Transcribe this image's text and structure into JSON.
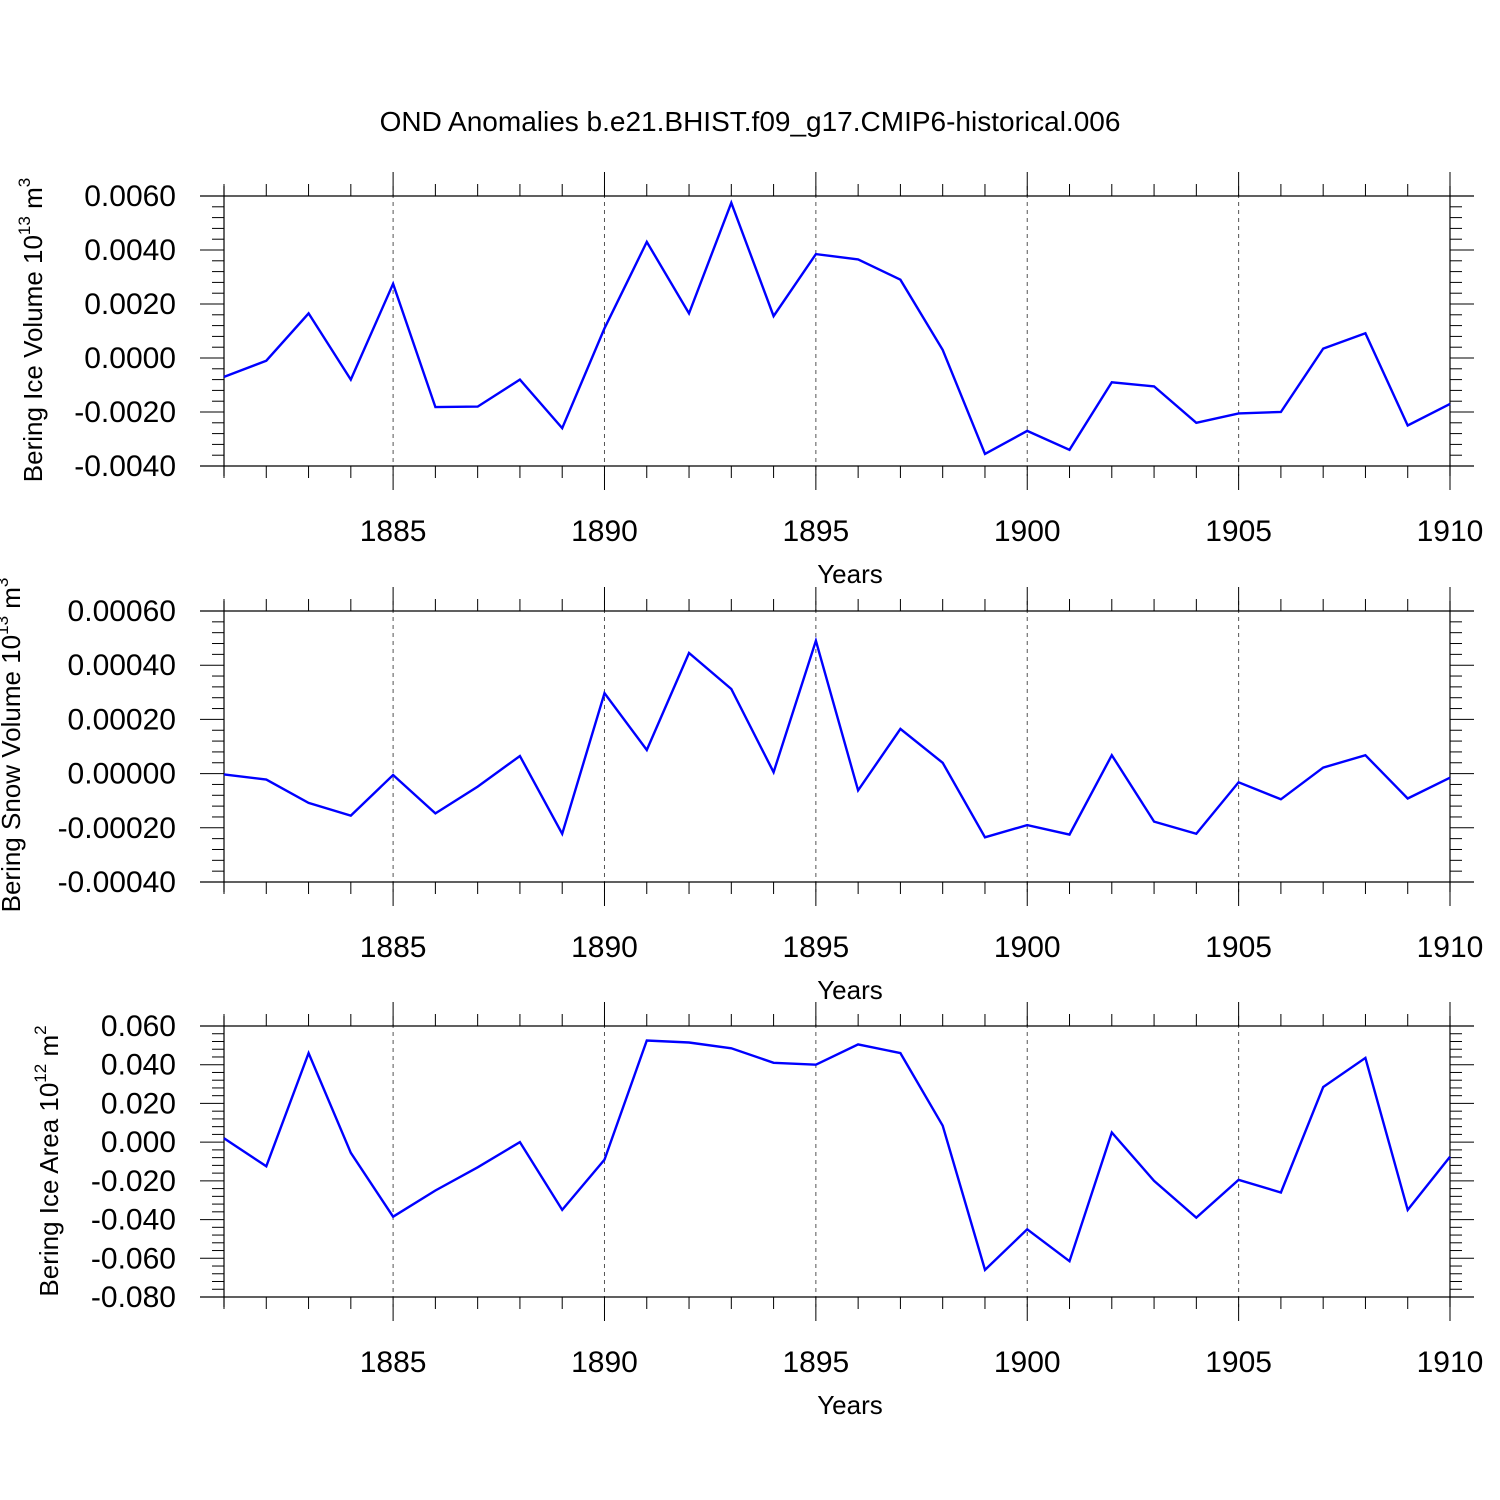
{
  "figure_title": "OND Anomalies b.e21.BHIST.f09_g17.CMIP6-historical.006",
  "chart_data": [
    {
      "type": "line",
      "title": "OND Anomalies b.e21.BHIST.f09_g17.CMIP6-historical.006",
      "xlabel": "Years",
      "ylabel": {
        "text": "Bering Ice Volume 10",
        "exponent": "13",
        "unit": " m",
        "unit_exponent": "3"
      },
      "xlim": [
        1881,
        1910
      ],
      "ylim": [
        -0.004,
        0.006
      ],
      "x_tick_values": [
        1885,
        1890,
        1895,
        1900,
        1905,
        1910
      ],
      "x_tick_labels": [
        "1885",
        "1890",
        "1895",
        "1900",
        "1905",
        "1910"
      ],
      "y_tick_values": [
        -0.004,
        -0.002,
        0.0,
        0.002,
        0.004,
        0.006
      ],
      "y_tick_labels": [
        "-0.0040",
        "-0.0020",
        "0.0000",
        "0.0020",
        "0.0040",
        "0.0060"
      ],
      "grid": "vertical dashed at major x ticks",
      "series": [
        {
          "name": "Bering Ice Volume",
          "color": "#0000ff",
          "x": [
            1881,
            1882,
            1883,
            1884,
            1885,
            1886,
            1887,
            1888,
            1889,
            1890,
            1891,
            1892,
            1893,
            1894,
            1895,
            1896,
            1897,
            1898,
            1899,
            1900,
            1901,
            1902,
            1903,
            1904,
            1905,
            1906,
            1907,
            1908,
            1909,
            1910
          ],
          "values": [
            -0.0007,
            -0.0001,
            0.00165,
            -0.0008,
            0.00275,
            -0.00182,
            -0.0018,
            -0.0008,
            -0.0026,
            0.0011,
            0.0043,
            0.00165,
            0.00575,
            0.00155,
            0.00385,
            0.00365,
            0.0029,
            0.0003,
            -0.00355,
            -0.0027,
            -0.0034,
            -0.0009,
            -0.00105,
            -0.0024,
            -0.00205,
            -0.002,
            0.00035,
            0.00092,
            -0.0025,
            -0.0017
          ]
        }
      ]
    },
    {
      "type": "line",
      "title": "",
      "xlabel": "Years",
      "ylabel": {
        "text": "Bering Snow Volume 10",
        "exponent": "13",
        "unit": " m",
        "unit_exponent": "3"
      },
      "xlim": [
        1881,
        1910
      ],
      "ylim": [
        -0.0004,
        0.0006
      ],
      "x_tick_values": [
        1885,
        1890,
        1895,
        1900,
        1905,
        1910
      ],
      "x_tick_labels": [
        "1885",
        "1890",
        "1895",
        "1900",
        "1905",
        "1910"
      ],
      "y_tick_values": [
        -0.0004,
        -0.0002,
        0.0,
        0.0002,
        0.0004,
        0.0006
      ],
      "y_tick_labels": [
        "-0.00040",
        "-0.00020",
        "0.00000",
        "0.00020",
        "0.00040",
        "0.00060"
      ],
      "grid": "vertical dashed at major x ticks",
      "series": [
        {
          "name": "Bering Snow Volume",
          "color": "#0000ff",
          "x": [
            1881,
            1882,
            1883,
            1884,
            1885,
            1886,
            1887,
            1888,
            1889,
            1890,
            1891,
            1892,
            1893,
            1894,
            1895,
            1896,
            1897,
            1898,
            1899,
            1900,
            1901,
            1902,
            1903,
            1904,
            1905,
            1906,
            1907,
            1908,
            1909,
            1910
          ],
          "values": [
            -3e-06,
            -2.2e-05,
            -0.000108,
            -0.000155,
            -5e-06,
            -0.000147,
            -4.8e-05,
            6.5e-05,
            -0.000222,
            0.000297,
            8.7e-05,
            0.000445,
            0.000312,
            5e-06,
            0.00049,
            -6.2e-05,
            0.000165,
            4e-05,
            -0.000235,
            -0.00019,
            -0.000225,
            6.8e-05,
            -0.000177,
            -0.000222,
            -3.2e-05,
            -9.5e-05,
            2.2e-05,
            6.8e-05,
            -9.2e-05,
            -1.5e-05
          ]
        }
      ]
    },
    {
      "type": "line",
      "title": "",
      "xlabel": "Years",
      "ylabel": {
        "text": "Bering Ice Area 10",
        "exponent": "12",
        "unit": " m",
        "unit_exponent": "2"
      },
      "xlim": [
        1881,
        1910
      ],
      "ylim": [
        -0.08,
        0.06
      ],
      "x_tick_values": [
        1885,
        1890,
        1895,
        1900,
        1905,
        1910
      ],
      "x_tick_labels": [
        "1885",
        "1890",
        "1895",
        "1900",
        "1905",
        "1910"
      ],
      "y_tick_values": [
        -0.08,
        -0.06,
        -0.04,
        -0.02,
        0.0,
        0.02,
        0.04,
        0.06
      ],
      "y_tick_labels": [
        "-0.080",
        "-0.060",
        "-0.040",
        "-0.020",
        "0.000",
        "0.020",
        "0.040",
        "0.060"
      ],
      "grid": "vertical dashed at major x ticks",
      "series": [
        {
          "name": "Bering Ice Area",
          "color": "#0000ff",
          "x": [
            1881,
            1882,
            1883,
            1884,
            1885,
            1886,
            1887,
            1888,
            1889,
            1890,
            1891,
            1892,
            1893,
            1894,
            1895,
            1896,
            1897,
            1898,
            1899,
            1900,
            1901,
            1902,
            1903,
            1904,
            1905,
            1906,
            1907,
            1908,
            1909,
            1910
          ],
          "values": [
            0.002,
            -0.0125,
            0.046,
            -0.0055,
            -0.0385,
            -0.025,
            -0.013,
            0.0,
            -0.035,
            -0.009,
            0.0525,
            0.0515,
            0.0485,
            0.041,
            0.04,
            0.0505,
            0.046,
            0.0085,
            -0.066,
            -0.045,
            -0.0615,
            0.005,
            -0.02,
            -0.039,
            -0.0195,
            -0.026,
            0.0285,
            0.0435,
            -0.035,
            -0.0075
          ]
        }
      ]
    }
  ]
}
